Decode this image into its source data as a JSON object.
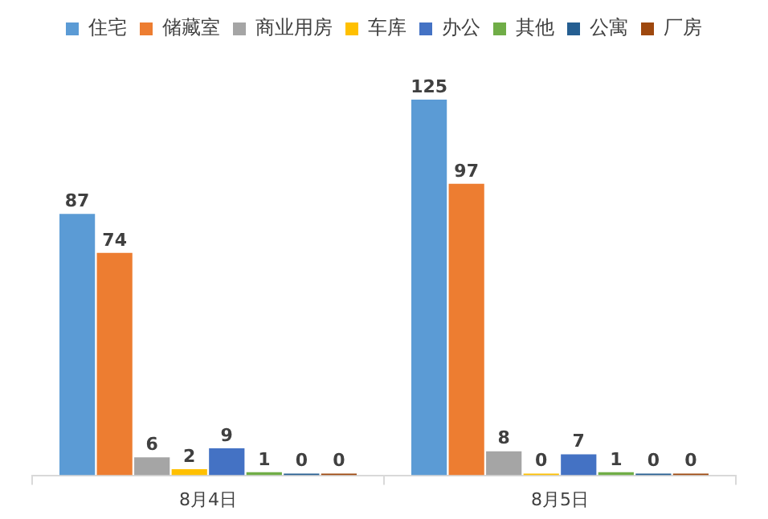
{
  "chart_data": {
    "type": "bar",
    "categories": [
      "8月4日",
      "8月5日"
    ],
    "series": [
      {
        "name": "住宅",
        "color": "#5b9bd5",
        "values": [
          87,
          125
        ]
      },
      {
        "name": "储藏室",
        "color": "#ed7d31",
        "values": [
          74,
          97
        ]
      },
      {
        "name": "商业用房",
        "color": "#a5a5a5",
        "values": [
          6,
          8
        ]
      },
      {
        "name": "车库",
        "color": "#ffc000",
        "values": [
          2,
          0
        ]
      },
      {
        "name": "办公",
        "color": "#4472c4",
        "values": [
          9,
          7
        ]
      },
      {
        "name": "其他",
        "color": "#70ad47",
        "values": [
          1,
          1
        ]
      },
      {
        "name": "公寓",
        "color": "#255e91",
        "values": [
          0,
          0
        ]
      },
      {
        "name": "厂房",
        "color": "#9e480e",
        "values": [
          0,
          0
        ]
      }
    ],
    "data_labels": true,
    "legend": "top",
    "grid": false,
    "tick_labels": "x"
  }
}
